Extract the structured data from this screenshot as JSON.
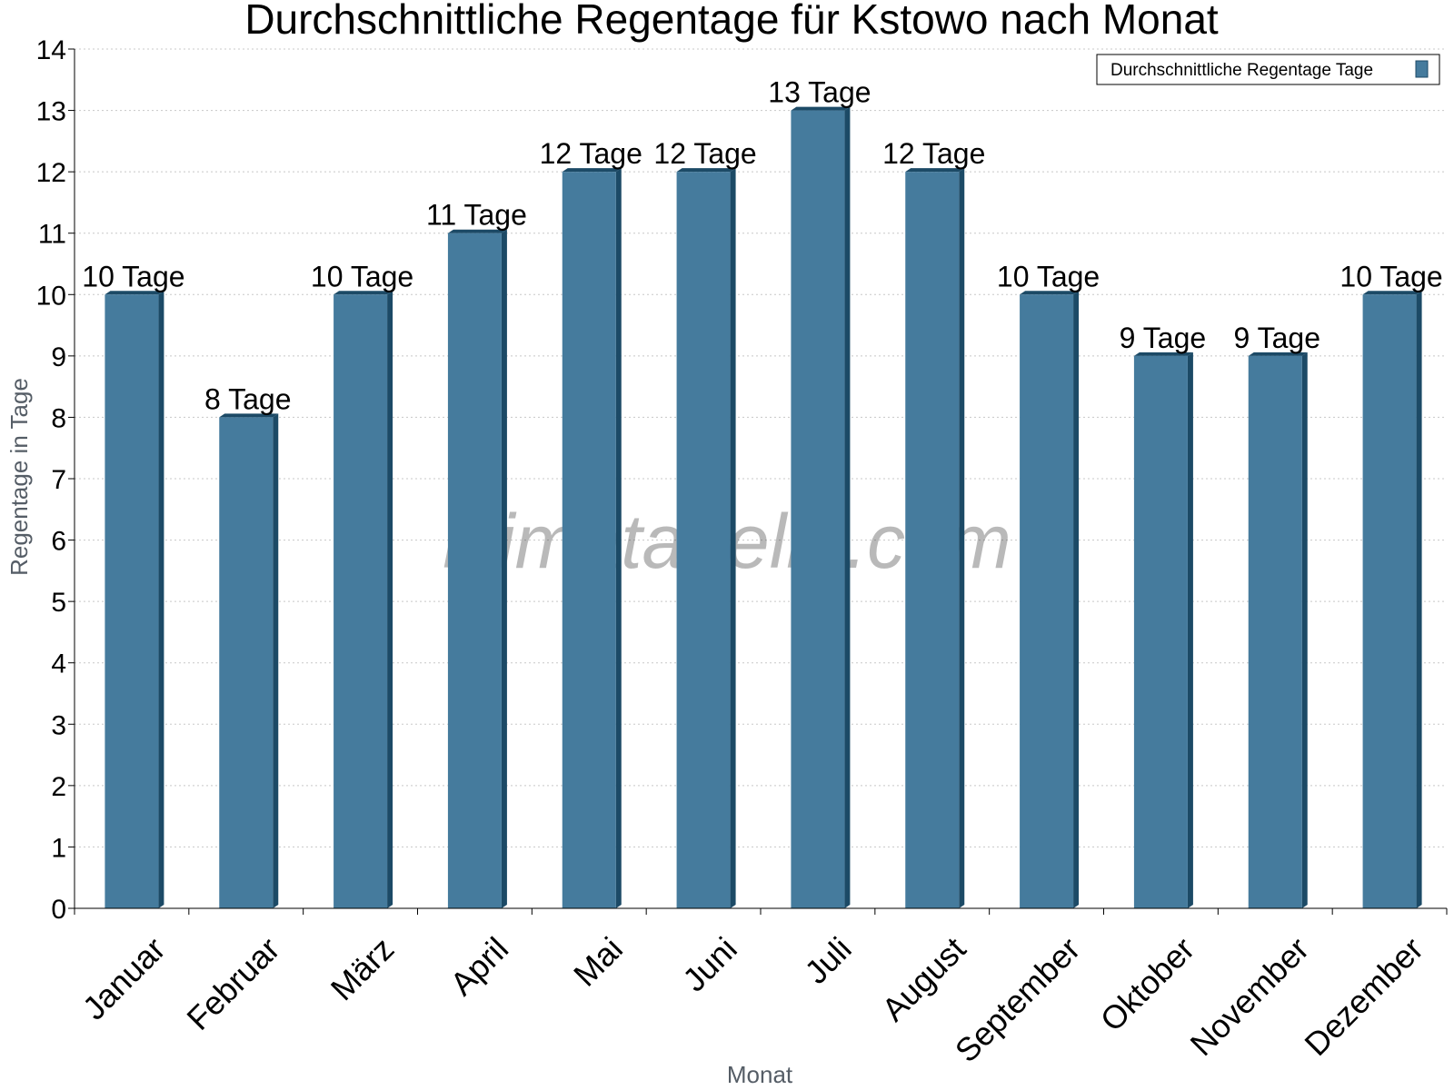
{
  "chart_data": {
    "type": "bar",
    "title": "Durchschnittliche Regentage für Kstowo nach Monat",
    "xlabel": "Monat",
    "ylabel": "Regentage in Tage",
    "categories": [
      "Januar",
      "Februar",
      "März",
      "April",
      "Mai",
      "Juni",
      "Juli",
      "August",
      "September",
      "Oktober",
      "November",
      "Dezember"
    ],
    "series": [
      {
        "name": "Durchschnittliche Regentage Tage",
        "values": [
          10,
          8,
          10,
          11,
          12,
          12,
          13,
          12,
          10,
          9,
          9,
          10
        ],
        "labels": [
          "10 Tage",
          "8 Tage",
          "10 Tage",
          "11 Tage",
          "12 Tage",
          "12 Tage",
          "13 Tage",
          "12 Tage",
          "10 Tage",
          "9 Tage",
          "9 Tage",
          "10 Tage"
        ]
      }
    ],
    "ylim": [
      0,
      14
    ],
    "yticks": [
      0,
      1,
      2,
      3,
      4,
      5,
      6,
      7,
      8,
      9,
      10,
      11,
      12,
      13,
      14
    ],
    "grid": true,
    "legend_position": "top-right",
    "colors": {
      "bar": "#457b9d",
      "bar_side": "#1c4a66",
      "grid": "#c8c8c8"
    }
  },
  "watermark": "klimatabelle.com"
}
